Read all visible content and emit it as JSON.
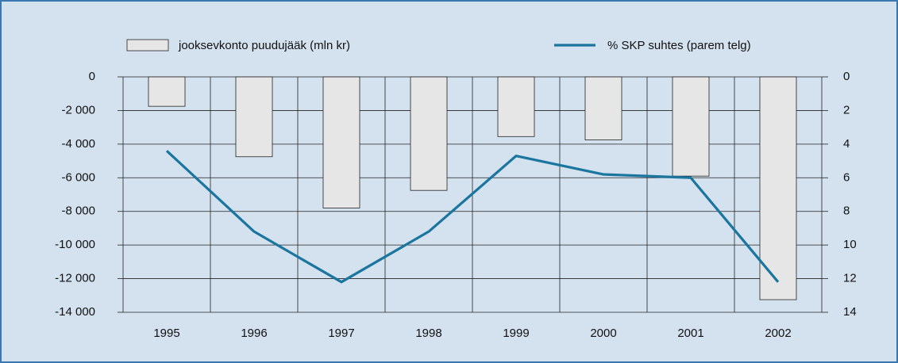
{
  "chart_data": {
    "type": "bar_line",
    "categories": [
      "1995",
      "1996",
      "1997",
      "1998",
      "1999",
      "2000",
      "2001",
      "2002"
    ],
    "series": [
      {
        "name": "jooksevkonto puudujääk (mln kr)",
        "type": "bar",
        "color": "#e6e6e6",
        "values": [
          -1750,
          -4750,
          -7800,
          -6750,
          -3550,
          -3750,
          -5900,
          -13250
        ]
      },
      {
        "name": "% SKP suhtes (parem telg)",
        "type": "line",
        "axis": "y2",
        "color": "#1a759f",
        "values": [
          4.4,
          9.2,
          12.2,
          9.2,
          4.7,
          5.8,
          6.0,
          12.2
        ]
      }
    ],
    "ylim": [
      -14000,
      0
    ],
    "yticks": [
      0,
      {
        "value": -2000,
        "label": "-2 000"
      },
      {
        "value": -4000,
        "label": "-4 000"
      },
      {
        "value": -6000,
        "label": "-6 000"
      },
      {
        "value": -8000,
        "label": "-8 000"
      },
      {
        "value": -10000,
        "label": "-10 000"
      },
      {
        "value": -12000,
        "label": "-12 000"
      },
      {
        "value": -14000,
        "label": "-14 000"
      }
    ],
    "y2lim": [
      14,
      0
    ],
    "y2ticks": [
      0,
      2,
      4,
      6,
      8,
      10,
      12,
      14
    ],
    "grid": true,
    "legend": "top"
  }
}
